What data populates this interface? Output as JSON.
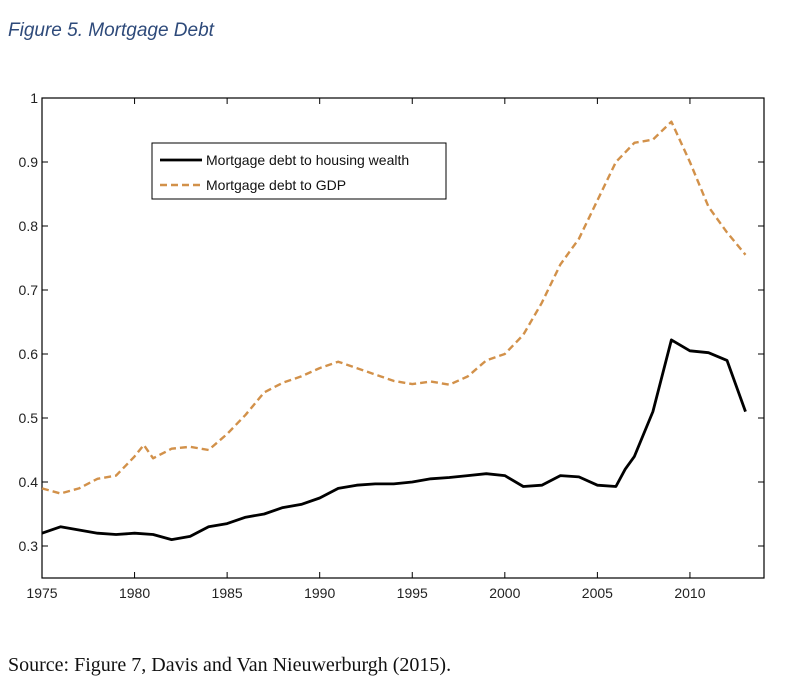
{
  "figure_title": "Figure 5. Mortgage Debt",
  "source_note": "Source: Figure 7, Davis and Van Nieuwerburgh (2015).",
  "chart_data": {
    "type": "line",
    "title": "",
    "xlabel": "",
    "ylabel": "",
    "xlim": [
      1975,
      2014
    ],
    "ylim": [
      0.25,
      1.0
    ],
    "xticks": [
      1975,
      1980,
      1985,
      1990,
      1995,
      2000,
      2005,
      2010
    ],
    "yticks": [
      0.3,
      0.4,
      0.5,
      0.6,
      0.7,
      0.8,
      0.9,
      1
    ],
    "xtick_labels": [
      "1975",
      "1980",
      "1985",
      "1990",
      "1995",
      "2000",
      "2005",
      "2010"
    ],
    "ytick_labels": [
      "0.3",
      "0.4",
      "0.5",
      "0.6",
      "0.7",
      "0.8",
      "0.9",
      "1"
    ],
    "legend_position": "top-left",
    "grid": false,
    "series": [
      {
        "name": "Mortgage debt to housing wealth",
        "color": "#000000",
        "style": "solid",
        "x": [
          1975,
          1976,
          1977,
          1978,
          1979,
          1980,
          1981,
          1982,
          1983,
          1984,
          1985,
          1986,
          1987,
          1988,
          1989,
          1990,
          1991,
          1992,
          1993,
          1994,
          1995,
          1996,
          1997,
          1998,
          1999,
          2000,
          2001,
          2002,
          2003,
          2004,
          2005,
          2006,
          2006.5,
          2007,
          2008,
          2009,
          2010,
          2011,
          2012,
          2013
        ],
        "y": [
          0.32,
          0.33,
          0.325,
          0.32,
          0.318,
          0.32,
          0.318,
          0.31,
          0.315,
          0.33,
          0.335,
          0.345,
          0.35,
          0.36,
          0.365,
          0.375,
          0.39,
          0.395,
          0.397,
          0.397,
          0.4,
          0.405,
          0.407,
          0.41,
          0.413,
          0.41,
          0.393,
          0.395,
          0.41,
          0.408,
          0.395,
          0.393,
          0.42,
          0.44,
          0.51,
          0.622,
          0.605,
          0.602,
          0.59,
          0.51
        ]
      },
      {
        "name": "Mortgage debt to GDP",
        "color": "#d2914a",
        "style": "dashed",
        "x": [
          1975,
          1976,
          1977,
          1978,
          1979,
          1980,
          1980.5,
          1981,
          1982,
          1983,
          1984,
          1985,
          1986,
          1987,
          1988,
          1989,
          1990,
          1991,
          1992,
          1993,
          1994,
          1995,
          1996,
          1997,
          1998,
          1999,
          2000,
          2001,
          2002,
          2003,
          2004,
          2005,
          2006,
          2007,
          2008,
          2009,
          2010,
          2011,
          2012,
          2013
        ],
        "y": [
          0.39,
          0.382,
          0.39,
          0.405,
          0.41,
          0.44,
          0.458,
          0.437,
          0.452,
          0.455,
          0.45,
          0.475,
          0.505,
          0.54,
          0.555,
          0.565,
          0.578,
          0.588,
          0.578,
          0.568,
          0.558,
          0.553,
          0.557,
          0.552,
          0.565,
          0.59,
          0.6,
          0.63,
          0.68,
          0.74,
          0.78,
          0.84,
          0.9,
          0.93,
          0.935,
          0.963,
          0.9,
          0.83,
          0.79,
          0.755
        ]
      }
    ]
  }
}
